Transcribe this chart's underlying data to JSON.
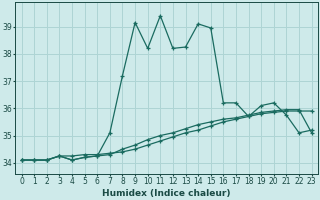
{
  "xlabel": "Humidex (Indice chaleur)",
  "background_color": "#ceeaea",
  "grid_color": "#aed4d4",
  "line_color": "#1a6b60",
  "xlim": [
    -0.5,
    23.5
  ],
  "ylim": [
    33.6,
    39.9
  ],
  "yticks": [
    34,
    35,
    36,
    37,
    38,
    39
  ],
  "xticks": [
    0,
    1,
    2,
    3,
    4,
    5,
    6,
    7,
    8,
    9,
    10,
    11,
    12,
    13,
    14,
    15,
    16,
    17,
    18,
    19,
    20,
    21,
    22,
    23
  ],
  "series1_x": [
    0,
    1,
    2,
    3,
    4,
    5,
    6,
    7,
    8,
    9,
    10,
    11,
    12,
    13,
    14,
    15,
    16,
    17,
    18,
    19,
    20,
    21,
    22,
    23
  ],
  "series1_y": [
    34.1,
    34.1,
    34.1,
    34.25,
    34.1,
    34.2,
    34.25,
    34.3,
    34.5,
    34.65,
    34.85,
    35.0,
    35.1,
    35.25,
    35.4,
    35.5,
    35.6,
    35.65,
    35.75,
    35.85,
    35.9,
    35.95,
    35.95,
    35.1
  ],
  "series2_x": [
    0,
    1,
    2,
    3,
    4,
    5,
    6,
    7,
    8,
    9,
    10,
    11,
    12,
    13,
    14,
    15,
    16,
    17,
    18,
    19,
    20,
    21,
    22,
    23
  ],
  "series2_y": [
    34.1,
    34.1,
    34.1,
    34.25,
    34.1,
    34.2,
    34.25,
    35.1,
    37.2,
    39.15,
    38.2,
    39.4,
    38.2,
    38.25,
    39.1,
    38.95,
    36.2,
    36.2,
    35.7,
    36.1,
    36.2,
    35.75,
    35.1,
    35.2
  ],
  "series3_x": [
    0,
    1,
    2,
    3,
    4,
    5,
    6,
    7,
    8,
    9,
    10,
    11,
    12,
    13,
    14,
    15,
    16,
    17,
    18,
    19,
    20,
    21,
    22,
    23
  ],
  "series3_y": [
    34.1,
    34.1,
    34.1,
    34.25,
    34.25,
    34.3,
    34.3,
    34.35,
    34.4,
    34.5,
    34.65,
    34.8,
    34.95,
    35.1,
    35.2,
    35.35,
    35.5,
    35.6,
    35.7,
    35.8,
    35.85,
    35.9,
    35.9,
    35.9
  ]
}
